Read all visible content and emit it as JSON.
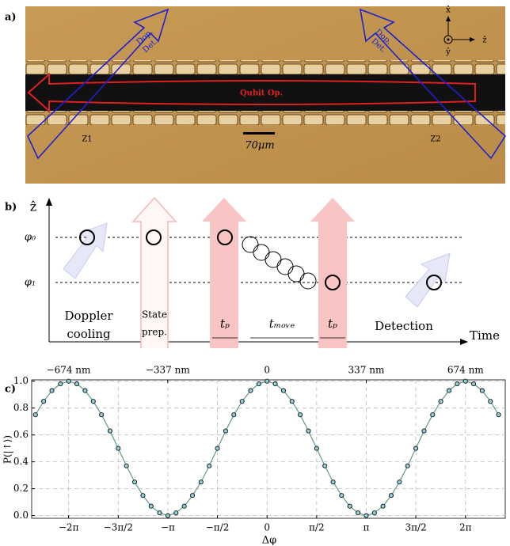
{
  "panel_a": {
    "label": "a)",
    "left_beam": [
      "Dop.",
      "Det."
    ],
    "right_beam": [
      "Dop.",
      "Det."
    ],
    "beam_center": "Qubit Op.",
    "zones": [
      "Z1",
      "Z2"
    ],
    "scale_bar": "70μm",
    "axes": {
      "x": "x̂",
      "y": "ŷ",
      "z": "ẑ"
    }
  },
  "panel_b": {
    "label": "b)",
    "vertical_axis": "ẑ",
    "horizontal_axis": "Time",
    "levels": [
      "φ₀",
      "φ₁"
    ],
    "stages": {
      "doppler": [
        "Doppler",
        "cooling"
      ],
      "state_prep": [
        "State",
        "prep."
      ],
      "pulse_1": "tₚ",
      "move": "tₘₒᵥₑ",
      "pulse_2": "tₚ",
      "detection": "Detection"
    }
  },
  "chart_data": {
    "type": "scatter",
    "label": "c)",
    "xlabel": "Δφ",
    "ylabel": "P(|↑⟩)",
    "x": [
      -7.33,
      -7.07,
      -6.81,
      -6.54,
      -6.28,
      -6.02,
      -5.76,
      -5.5,
      -5.24,
      -4.97,
      -4.71,
      -4.45,
      -4.19,
      -3.93,
      -3.67,
      -3.4,
      -3.14,
      -2.88,
      -2.62,
      -2.36,
      -2.09,
      -1.83,
      -1.57,
      -1.31,
      -1.05,
      -0.79,
      -0.52,
      -0.26,
      0,
      0.26,
      0.52,
      0.79,
      1.05,
      1.31,
      1.57,
      1.83,
      2.09,
      2.36,
      2.62,
      2.88,
      3.14,
      3.4,
      3.67,
      3.93,
      4.19,
      4.45,
      4.71,
      4.97,
      5.24,
      5.5,
      5.76,
      6.02,
      6.28,
      6.54,
      6.81,
      7.07,
      7.33
    ],
    "values": [
      0.75,
      0.85,
      0.93,
      0.98,
      1.0,
      0.98,
      0.93,
      0.85,
      0.75,
      0.63,
      0.5,
      0.37,
      0.25,
      0.15,
      0.07,
      0.02,
      0.0,
      0.02,
      0.07,
      0.15,
      0.25,
      0.37,
      0.5,
      0.63,
      0.75,
      0.85,
      0.93,
      0.98,
      1.0,
      0.98,
      0.93,
      0.85,
      0.75,
      0.63,
      0.5,
      0.37,
      0.25,
      0.15,
      0.07,
      0.02,
      0.0,
      0.02,
      0.07,
      0.15,
      0.25,
      0.37,
      0.5,
      0.63,
      0.75,
      0.85,
      0.93,
      0.98,
      1.0,
      0.98,
      0.93,
      0.85,
      0.75
    ],
    "color": "#8fd0dc",
    "line_color": "#5f9c8c",
    "xlim": [
      -7.45,
      7.54
    ],
    "xticks": [
      {
        "value": -6.28,
        "label": "−2π"
      },
      {
        "value": -4.71,
        "label": "−3π/2"
      },
      {
        "value": -3.14,
        "label": "−π"
      },
      {
        "value": -1.57,
        "label": "−π/2"
      },
      0,
      {
        "value": 1.57,
        "label": "π/2"
      },
      {
        "value": 3.14,
        "label": "π"
      },
      {
        "value": 4.71,
        "label": "3π/2"
      },
      {
        "value": 6.28,
        "label": "2π"
      }
    ],
    "x2lim": [
      -799,
      809
    ],
    "x2ticks": [
      {
        "value": -674,
        "label": "−674 nm"
      },
      {
        "value": -337,
        "label": "−337 nm"
      },
      0,
      {
        "value": 337,
        "label": "337 nm"
      },
      {
        "value": 674,
        "label": "674 nm"
      }
    ],
    "ylim": [
      -0.02,
      1.01
    ],
    "yticks": [
      {
        "value": 0,
        "label": "0.0"
      },
      0.2,
      0.4,
      0.6,
      0.8,
      {
        "value": 1,
        "label": "1.0"
      }
    ],
    "grid": true
  }
}
